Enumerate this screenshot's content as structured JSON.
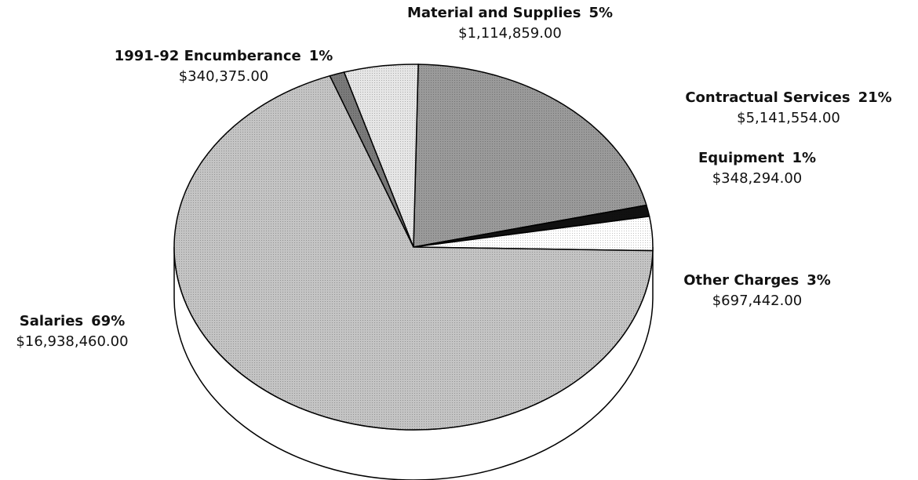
{
  "chart_data": {
    "type": "pie",
    "categories": [
      "Contractual Services",
      "Equipment",
      "Other Charges",
      "Salaries",
      "1991-92 Encumberance",
      "Material and Supplies"
    ],
    "values": [
      21,
      1,
      3,
      69,
      1,
      5
    ],
    "value_labels": [
      "21%",
      "1%",
      "3%",
      "69%",
      "1%",
      "5%"
    ],
    "amounts": [
      "$5,141,554.00",
      "$348,294.00",
      "$697,442.00",
      "$16,938,460.00",
      "$340,375.00",
      "$1,114,859.00"
    ],
    "colors": [
      "#9a9a9a",
      "#111111",
      "#ffffff",
      "#c4c4c4",
      "#7a7a7a",
      "#e6e6e6"
    ]
  }
}
